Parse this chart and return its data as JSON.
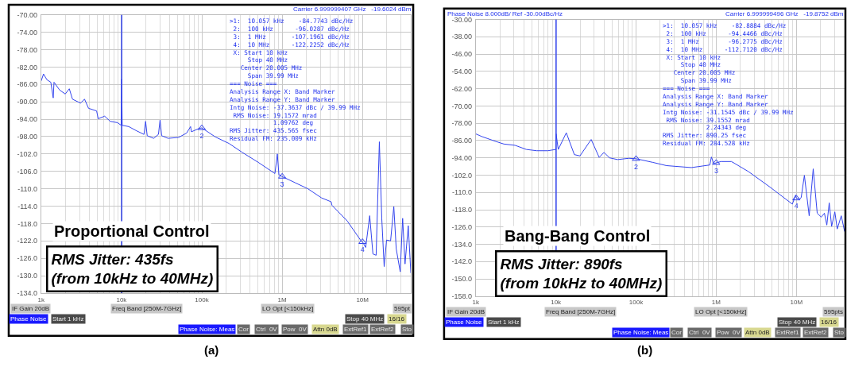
{
  "chart_data": [
    {
      "type": "line",
      "title": "Proportional Control",
      "subtitle": "RMS Jitter: 435fs\n(from 10kHz to 40MHz)",
      "xlabel": "(a)",
      "log": "x",
      "grid": true,
      "xlim": [
        1000,
        40000000
      ],
      "ylim": [
        -134,
        -70
      ],
      "xticks": [
        {
          "value": 1000,
          "label": "1k"
        },
        {
          "value": 10000,
          "label": "10k"
        },
        {
          "value": 100000,
          "label": "100k"
        },
        {
          "value": 1000000,
          "label": "1M"
        },
        {
          "value": 10000000,
          "label": "10M"
        }
      ],
      "yticks": [
        {
          "value": -70,
          "label": "-70.00"
        },
        {
          "value": -74,
          "label": "-74.00"
        },
        {
          "value": -78,
          "label": "-78.00"
        },
        {
          "value": -82,
          "label": "-82.00"
        },
        {
          "value": -86,
          "label": "-86.00"
        },
        {
          "value": -90,
          "label": "-90.00"
        },
        {
          "value": -94,
          "label": "-94.00"
        },
        {
          "value": -98,
          "label": "-98.00"
        },
        {
          "value": -102,
          "label": "-102.0"
        },
        {
          "value": -106,
          "label": "-106.0"
        },
        {
          "value": -110,
          "label": "-110.0"
        },
        {
          "value": -114,
          "label": "-114.0"
        },
        {
          "value": -118,
          "label": "-118.0"
        },
        {
          "value": -122,
          "label": "-122.0"
        },
        {
          "value": -126,
          "label": "-126.0"
        },
        {
          "value": -130,
          "label": "-130.0"
        },
        {
          "value": -134,
          "label": "-134.0"
        }
      ],
      "x": [
        1000,
        1070,
        1175,
        1318,
        1413,
        1445,
        1698,
        1995,
        2239,
        2455,
        3090,
        3467,
        3890,
        4898,
        5129,
        6166,
        7244,
        8913,
        9900,
        10057,
        10200,
        12300,
        15140,
        19050,
        19950,
        20890,
        25120,
        28840,
        30200,
        31620,
        38020,
        51290,
        64570,
        72440,
        74130,
        93330,
        100000,
        147900,
        218800,
        316200,
        501200,
        812800,
        871000,
        912000,
        1000000,
        1445000,
        2089000,
        3090000,
        4074000,
        4169000,
        6457000,
        9772000,
        10000000,
        10960000,
        12300000,
        13490000,
        14790000,
        16220000,
        17380000,
        18620000,
        19950000,
        22390000,
        24550000,
        26300000,
        29510000,
        31620000,
        33880000,
        37150000,
        40000000
      ],
      "series": [
        {
          "color": "#3344ee",
          "values": [
            -85.2,
            -83.6,
            -84.9,
            -85.5,
            -89.1,
            -85.5,
            -87.3,
            -88.2,
            -87.0,
            -89.4,
            -90.3,
            -89.4,
            -91.5,
            -92.1,
            -93.9,
            -93.3,
            -94.5,
            -94.8,
            -95.4,
            -84.8,
            -95.4,
            -95.7,
            -96.6,
            -97.5,
            -94.5,
            -97.8,
            -98.4,
            -97.5,
            -94.2,
            -97.8,
            -98.4,
            -98.2,
            -97.2,
            -95.7,
            -96.9,
            -96.1,
            -96.0,
            -98.1,
            -99.6,
            -101.6,
            -103.9,
            -106.5,
            -102.0,
            -106.8,
            -107.2,
            -108.6,
            -110.0,
            -112.1,
            -113.0,
            -113.8,
            -117.4,
            -122.2,
            -122.2,
            -123.5,
            -116.2,
            -125.0,
            -125.3,
            -99.2,
            -116.8,
            -127.9,
            -121.8,
            -122.0,
            -114.1,
            -123.8,
            -129.1,
            -116.8,
            -127.3,
            -118.5,
            -129.4
          ]
        }
      ],
      "ref_lines": [
        {
          "axis": "x",
          "value": 10057,
          "color": "#3344ee"
        }
      ],
      "annotations": [
        {
          "text": "2",
          "x": 100000,
          "y": -96.0287
        },
        {
          "text": "3",
          "x": 1000000,
          "y": -107.1961
        },
        {
          "text": "4",
          "x": 10000000,
          "y": -122.2252
        },
        ">1:  10.057 kHz    -84.7743 dBc/Hz\n 2:  100 kHz      -96.0287 dBc/Hz\n 3:  1 MHz       -107.1961 dBc/Hz\n 4:  10 MHz      -122.2252 dBc/Hz\n X: Start 10 kHz\n     Stop 40 MHz\n   Center 20.005 MHz\n     Span 39.99 MHz\n=== Noise ===\nAnalysis Range X: Band Marker\nAnalysis Range Y: Band Marker\nIntg Noise: -37.3637 dBc / 39.99 MHz\n RMS Noise: 19.1572 mrad\n            1.09762 deg\nRMS Jitter: 435.565 fsec\nResidual FM: 235.009 kHz",
        "Carrier 6.999999407 GHz   -19.6024 dBm",
        "IF Gain 20dB",
        "Freq Band [250M-7GHz]",
        "LO Opt [<150kHz]",
        "595pt",
        "Phase Noise",
        "Start 1 kHz",
        "Stop 40 MHz",
        "16/16",
        "Phase Noise: Meas",
        "Cor",
        "Ctrl  0V",
        "Pow  0V",
        "Attn 0dB",
        "ExtRef1",
        "ExtRef2",
        "Sto"
      ]
    },
    {
      "type": "line",
      "title": "Bang-Bang Control",
      "subtitle": "RMS Jitter: 890fs\n(from 10kHz to 40MHz)",
      "xlabel": "(b)",
      "ylabel": "Phase Noise 8.000dB/ Ref -30.00dBc/Hz",
      "log": "x",
      "grid": true,
      "xlim": [
        1000,
        40000000
      ],
      "ylim": [
        -158,
        -30
      ],
      "xticks": [
        {
          "value": 1000,
          "label": "1k"
        },
        {
          "value": 10000,
          "label": "10k"
        },
        {
          "value": 100000,
          "label": "100k"
        },
        {
          "value": 1000000,
          "label": "1M"
        },
        {
          "value": 10000000,
          "label": "10M"
        }
      ],
      "yticks": [
        {
          "value": -30,
          "label": "-30.00"
        },
        {
          "value": -38,
          "label": "-38.00"
        },
        {
          "value": -46,
          "label": "-46.00"
        },
        {
          "value": -54,
          "label": "-54.00"
        },
        {
          "value": -62,
          "label": "-62.00"
        },
        {
          "value": -70,
          "label": "-70.00"
        },
        {
          "value": -78,
          "label": "-78.00"
        },
        {
          "value": -86,
          "label": "-86.00"
        },
        {
          "value": -94,
          "label": "-94.00"
        },
        {
          "value": -102,
          "label": "-102.0"
        },
        {
          "value": -110,
          "label": "-110.0"
        },
        {
          "value": -118,
          "label": "-118.0"
        },
        {
          "value": -126,
          "label": "-126.0"
        },
        {
          "value": -134,
          "label": "-134.0"
        },
        {
          "value": -142,
          "label": "-142.0"
        },
        {
          "value": -150,
          "label": "-150.0"
        },
        {
          "value": -158,
          "label": "-158.0"
        }
      ],
      "x": [
        1000,
        1202,
        1413,
        1778,
        2239,
        3090,
        4266,
        5754,
        7943,
        10000,
        10057,
        10700,
        13490,
        16980,
        19950,
        27540,
        34670,
        39810,
        46770,
        58880,
        81280,
        100000,
        162200,
        239900,
        489800,
        831800,
        871000,
        933300,
        1000000,
        1148000,
        1549000,
        2512000,
        4677000,
        8913000,
        9772000,
        10000000,
        10960000,
        11480000,
        12590000,
        14450000,
        16220000,
        18200000,
        20420000,
        22390000,
        23990000,
        25700000,
        27540000,
        30200000,
        32360000,
        36310000,
        40000000
      ],
      "series": [
        {
          "color": "#3344ee",
          "values": [
            -82.9,
            -84.2,
            -85.1,
            -86.4,
            -87.6,
            -88.2,
            -90.1,
            -90.7,
            -90.7,
            -90.1,
            -82.9,
            -90.1,
            -82.4,
            -92.5,
            -93.1,
            -85.5,
            -93.8,
            -91.5,
            -94.0,
            -94.8,
            -94.2,
            -94.4,
            -96.1,
            -97.6,
            -98.5,
            -97.3,
            -93.6,
            -96.7,
            -96.3,
            -95.7,
            -95.7,
            -100.3,
            -107.5,
            -115.4,
            -111.2,
            -112.7,
            -113.0,
            -112.4,
            -102.1,
            -120.8,
            -99.1,
            -119.6,
            -121.4,
            -119.6,
            -125.1,
            -114.8,
            -125.7,
            -119.0,
            -126.9,
            -120.8,
            -128.1
          ]
        }
      ],
      "ref_lines": [
        {
          "axis": "x",
          "value": 10057,
          "color": "#3344ee"
        }
      ],
      "annotations": [
        {
          "text": "2",
          "x": 100000,
          "y": -94.4466
        },
        {
          "text": "3",
          "x": 1000000,
          "y": -96.2775
        },
        {
          "text": "4",
          "x": 10000000,
          "y": -112.712
        },
        ">1:  10.057 kHz    -82.8884 dBc/Hz\n 2:  100 kHz      -94.4466 dBc/Hz\n 3:  1 MHz        -96.2775 dBc/Hz\n 4:  10 MHz      -112.7120 dBc/Hz\n X: Start 10 kHz\n     Stop 40 MHz\n   Center 20.005 MHz\n     Span 39.99 MHz\n=== Noise ===\nAnalysis Range X: Band Marker\nAnalysis Range Y: Band Marker\nIntg Noise: -31.1545 dBc / 39.99 MHz\n RMS Noise: 39.1552 mrad\n            2.24343 deg\nRMS Jitter: 890.25 fsec\nResidual FM: 284.528 kHz",
        "Carrier 6.999999496 GHz   -19.8752 dBm",
        "IF Gain 20dB",
        "Freq Band [250M-7GHz]",
        "LO Opt [<150kHz]",
        "595pts",
        "Phase Noise",
        "Start 1 kHz",
        "Stop 40 MHz",
        "16/16",
        "Phase Noise: Meas",
        "Cor",
        "Ctrl  0V",
        "Pow  0V",
        "Attn 0dB",
        "ExtRef1",
        "ExtRef2",
        "Sto"
      ]
    }
  ]
}
